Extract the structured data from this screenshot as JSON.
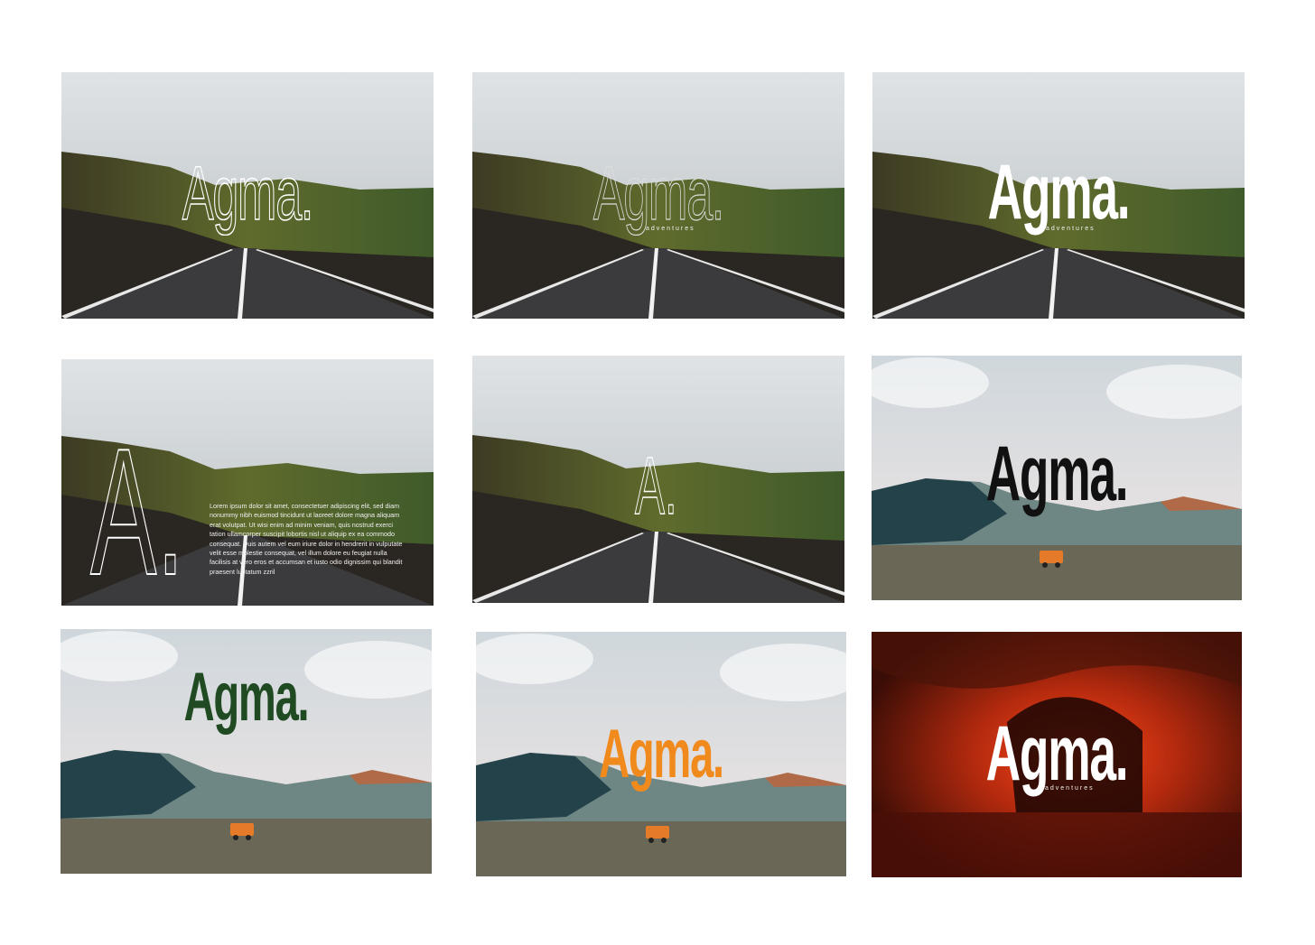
{
  "brand": {
    "name": "Agma.",
    "tagline": "adventures",
    "monogram": "A."
  },
  "body_text": "Lorem ipsum dolor sit amet, consectetuer adipiscing elit, sed diam nonummy nibh euismod tincidunt ut laoreet dolore magna aliquam erat volutpat. Ut wisi enim ad minim veniam, quis nostrud exerci tation ullamcorper suscipit lobortis nisl ut aliquip ex ea commodo consequat. Duis autem vel eum iriure dolor in hendrerit in vulputate velit esse molestie consequat, vel illum dolore eu feugiat nulla facilisis at vero eros et accumsan et iusto odio dignissim qui blandit praesent luptatum zzril",
  "tiles": [
    {
      "scene": "road",
      "logo_style": "outline-white"
    },
    {
      "scene": "road",
      "logo_style": "outline-grey"
    },
    {
      "scene": "road",
      "logo_style": "solid-white"
    },
    {
      "scene": "road",
      "logo_style": "monogram-with-text"
    },
    {
      "scene": "road",
      "logo_style": "monogram-small"
    },
    {
      "scene": "desert",
      "logo_style": "solid-black"
    },
    {
      "scene": "desert",
      "logo_style": "solid-green"
    },
    {
      "scene": "desert",
      "logo_style": "solid-orange"
    },
    {
      "scene": "cave",
      "logo_style": "solid-white"
    }
  ],
  "colors": {
    "green": "#1f4a22",
    "orange": "#f08a1c",
    "black": "#111111",
    "white": "#ffffff",
    "cave": "#7a1d0c"
  }
}
